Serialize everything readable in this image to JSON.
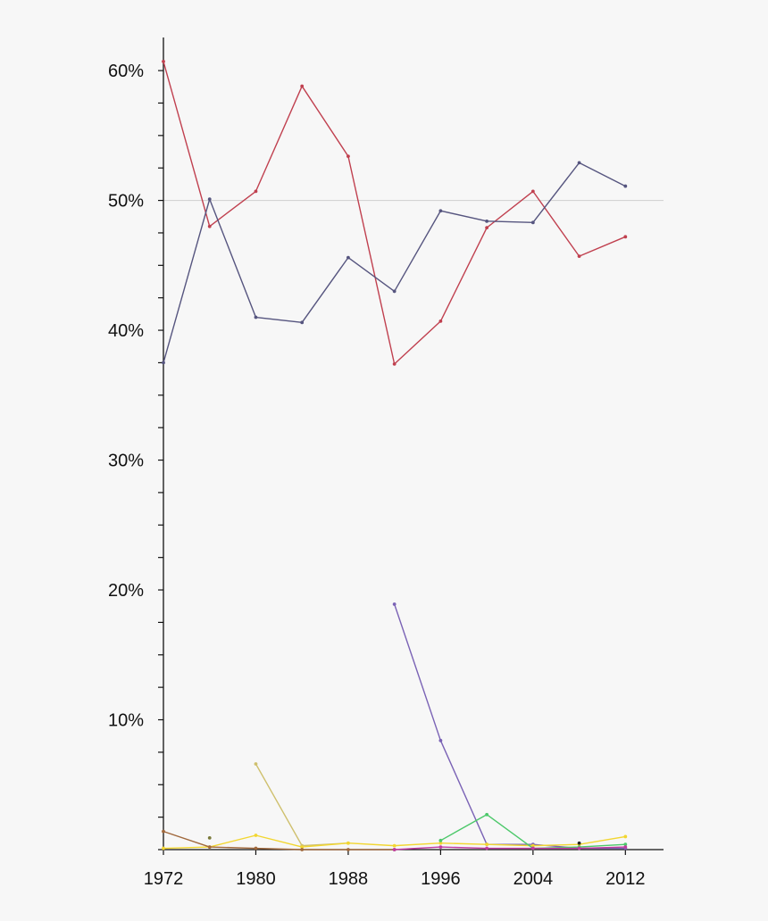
{
  "chart_data": {
    "type": "line",
    "title": "",
    "xlabel": "",
    "ylabel": "",
    "xlim": [
      1972,
      2015.3
    ],
    "ylim": [
      0,
      62
    ],
    "x_ticks": [
      1972,
      1980,
      1988,
      1996,
      2004,
      2012
    ],
    "x_tick_labels": [
      "1972",
      "1980",
      "1988",
      "1996",
      "2004",
      "2012"
    ],
    "y_ticks": [
      10,
      20,
      30,
      40,
      50,
      60
    ],
    "y_tick_labels": [
      "10%",
      "20%",
      "30%",
      "40%",
      "50%",
      "60%"
    ],
    "y_minor_step": 2.5,
    "reference_line": 50,
    "grid": false,
    "legend": "none",
    "series": [
      {
        "color": "#c0404f",
        "x": [
          1972,
          1976,
          1980,
          1984,
          1988,
          1992,
          1996,
          2000,
          2004,
          2008,
          2012
        ],
        "values": [
          60.7,
          48.0,
          50.7,
          58.8,
          53.4,
          37.4,
          40.7,
          47.9,
          50.7,
          45.7,
          47.2
        ]
      },
      {
        "color": "#56557f",
        "x": [
          1972,
          1976,
          1980,
          1984,
          1988,
          1992,
          1996,
          2000,
          2004,
          2008,
          2012
        ],
        "values": [
          37.5,
          50.1,
          41.0,
          40.6,
          45.6,
          43.0,
          49.2,
          48.4,
          48.3,
          52.9,
          51.1
        ]
      },
      {
        "color": "#7a62b5",
        "x": [
          1992,
          1996,
          2000,
          2004,
          2008,
          2012
        ],
        "values": [
          18.9,
          8.4,
          0.4,
          0.4,
          0.1,
          0.1
        ]
      },
      {
        "color": "#cfc06e",
        "x": [
          1980,
          1984,
          1988
        ],
        "values": [
          6.6,
          0.3,
          0.5
        ]
      },
      {
        "color": "#f2d630",
        "x": [
          1972,
          1976,
          1980,
          1984,
          1988,
          1992,
          1996,
          2000,
          2004,
          2008,
          2012
        ],
        "values": [
          0.1,
          0.2,
          1.1,
          0.2,
          0.5,
          0.3,
          0.5,
          0.4,
          0.3,
          0.4,
          1.0
        ]
      },
      {
        "color": "#4cc86a",
        "x": [
          1996,
          2000,
          2004,
          2008,
          2012
        ],
        "values": [
          0.7,
          2.7,
          0.1,
          0.2,
          0.4
        ]
      },
      {
        "color": "#a0683c",
        "x": [
          1972,
          1976,
          1980,
          1984,
          1988,
          1992
        ],
        "values": [
          1.4,
          0.2,
          0.1,
          0.0,
          0.0,
          0.0
        ]
      },
      {
        "color": "#c03aa0",
        "x": [
          1992,
          1996,
          2000,
          2004,
          2008,
          2012
        ],
        "values": [
          0.0,
          0.2,
          0.1,
          0.1,
          0.1,
          0.2
        ]
      },
      {
        "color": "#7a7a3a",
        "x": [
          1976
        ],
        "values": [
          0.9
        ]
      },
      {
        "color": "#222222",
        "x": [
          2008
        ],
        "values": [
          0.5
        ]
      }
    ]
  }
}
